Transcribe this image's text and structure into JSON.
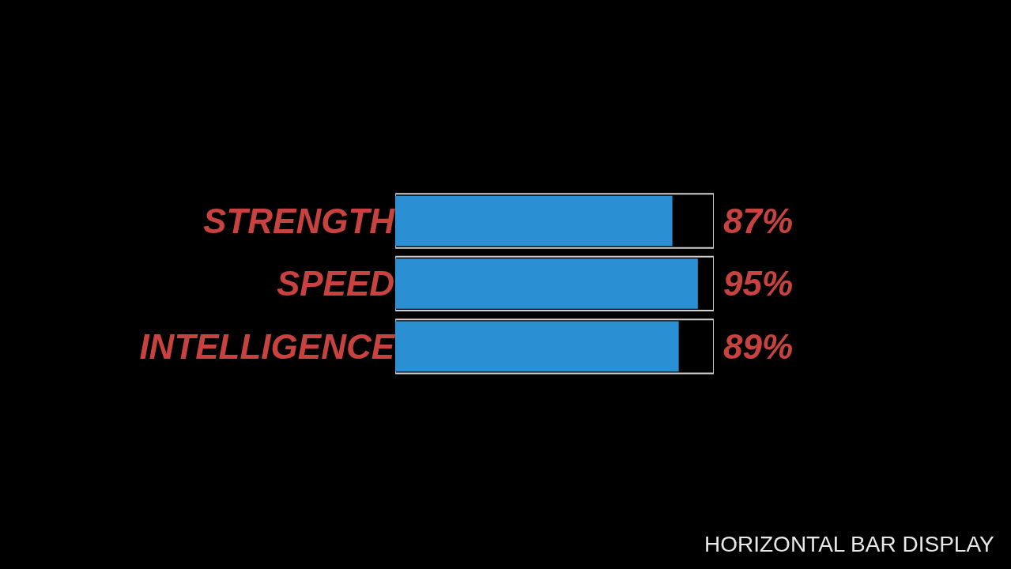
{
  "chart_data": {
    "type": "bar",
    "orientation": "horizontal",
    "categories": [
      "STRENGTH",
      "SPEED",
      "INTELLIGENCE"
    ],
    "values": [
      87,
      95,
      89
    ],
    "value_labels": [
      "87%",
      "95%",
      "89%"
    ],
    "color": "#2b8fd3",
    "xlim": [
      0,
      100
    ],
    "tick_labels": "y",
    "grid": false,
    "legend": false,
    "annotations": [
      "HORIZONTAL BAR DISPLAY"
    ]
  }
}
